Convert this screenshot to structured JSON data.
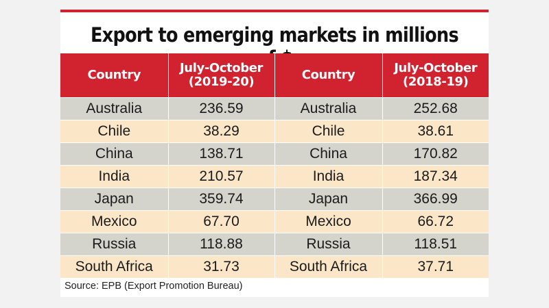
{
  "chart_data": {
    "type": "table",
    "title": "Export to emerging markets in millions of $",
    "columns": [
      "Country",
      "July-October (2019-20)",
      "Country",
      "July-October (2018-19)"
    ],
    "headers": [
      {
        "line1": "Country",
        "line2": ""
      },
      {
        "line1": "July-October",
        "line2": "(2019-20)"
      },
      {
        "line1": "Country",
        "line2": ""
      },
      {
        "line1": "July-October",
        "line2": "(2018-19)"
      }
    ],
    "rows": [
      [
        "Australia",
        "236.59",
        "Australia",
        "252.68"
      ],
      [
        "Chile",
        "38.29",
        "Chile",
        "38.61"
      ],
      [
        "China",
        "138.71",
        "China",
        "170.82"
      ],
      [
        "India",
        "210.57",
        "India",
        "187.34"
      ],
      [
        "Japan",
        "359.74",
        "Japan",
        "366.99"
      ],
      [
        "Mexico",
        "67.70",
        "Mexico",
        "66.72"
      ],
      [
        "Russia",
        "118.88",
        "Russia",
        "118.51"
      ],
      [
        "South Africa",
        "31.73",
        "South Africa",
        "37.71"
      ]
    ],
    "source": "Source: EPB (Export Promotion Bureau)"
  },
  "colors": {
    "accent_red": "#d0222f",
    "row_grey": "#d4d4cc",
    "row_cream": "#fbe7c8"
  }
}
